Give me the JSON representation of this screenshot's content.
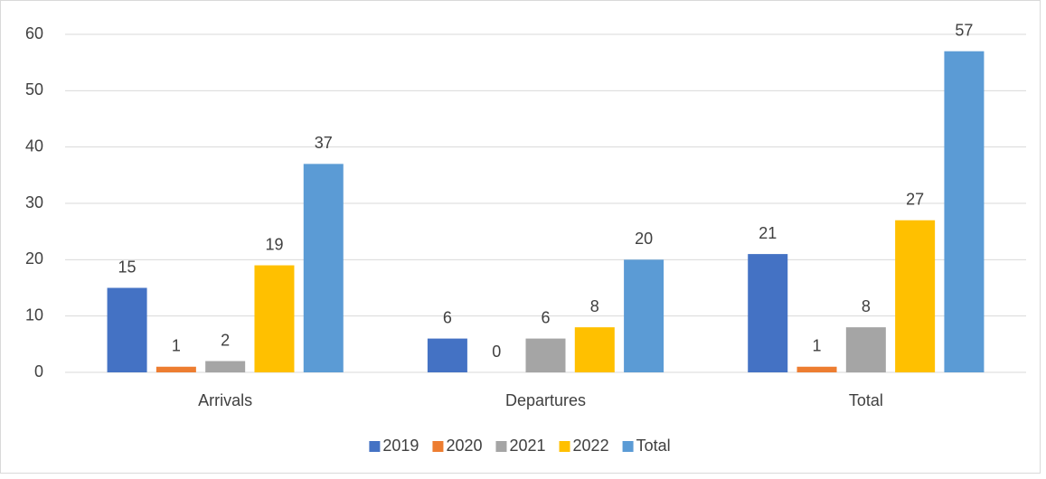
{
  "chart_data": {
    "type": "bar",
    "categories": [
      "Arrivals",
      "Departures",
      "Total"
    ],
    "series": [
      {
        "name": "2019",
        "color": "#4472c4",
        "values": [
          15,
          6,
          21
        ]
      },
      {
        "name": "2020",
        "color": "#ed7d31",
        "values": [
          1,
          0,
          1
        ]
      },
      {
        "name": "2021",
        "color": "#a5a5a5",
        "values": [
          2,
          6,
          8
        ]
      },
      {
        "name": "2022",
        "color": "#ffc000",
        "values": [
          19,
          8,
          27
        ]
      },
      {
        "name": "Total",
        "color": "#5b9bd5",
        "values": [
          37,
          20,
          57
        ]
      }
    ],
    "ylim": [
      0,
      60
    ],
    "yticks": [
      0,
      10,
      20,
      30,
      40,
      50,
      60
    ],
    "grid": true,
    "legend": "bottom"
  }
}
